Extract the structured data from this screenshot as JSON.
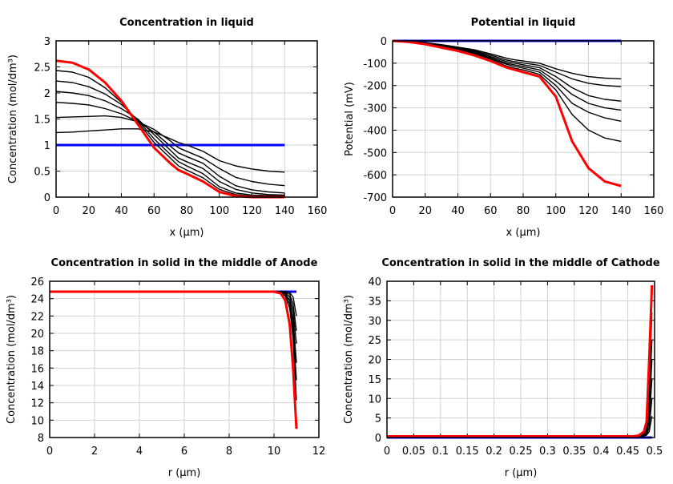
{
  "chart_data": [
    {
      "type": "line",
      "title": "Concentration in liquid",
      "xlabel": "x (µm)",
      "ylabel": "Concentration (mol/dm³)",
      "xlim": [
        0,
        160
      ],
      "ylim": [
        0,
        3
      ],
      "grid": true,
      "xticks": [
        "0",
        "20",
        "40",
        "60",
        "80",
        "100",
        "120",
        "140",
        "160"
      ],
      "yticks": [
        "0",
        "0.5",
        "1",
        "1.5",
        "2",
        "2.5",
        "3"
      ],
      "x": [
        0,
        10,
        20,
        30,
        40,
        50,
        60,
        70,
        75,
        80,
        90,
        100,
        110,
        120,
        130,
        140
      ],
      "series": [
        {
          "color": "#0000ff",
          "values": [
            1,
            1,
            1,
            1,
            1,
            1,
            1,
            1,
            1,
            1,
            1,
            1,
            1,
            1,
            1,
            1
          ]
        },
        {
          "color": "#000000",
          "values": [
            1.24,
            1.25,
            1.27,
            1.29,
            1.31,
            1.31,
            1.25,
            1.12,
            1.05,
            1.0,
            0.88,
            0.7,
            0.6,
            0.54,
            0.5,
            0.48
          ]
        },
        {
          "color": "#000000",
          "values": [
            1.53,
            1.54,
            1.55,
            1.56,
            1.53,
            1.45,
            1.3,
            1.08,
            0.95,
            0.88,
            0.75,
            0.55,
            0.38,
            0.3,
            0.25,
            0.22
          ]
        },
        {
          "color": "#000000",
          "values": [
            1.82,
            1.8,
            1.77,
            1.7,
            1.6,
            1.45,
            1.25,
            0.98,
            0.85,
            0.78,
            0.65,
            0.4,
            0.22,
            0.14,
            0.1,
            0.08
          ]
        },
        {
          "color": "#000000",
          "values": [
            2.03,
            2.0,
            1.95,
            1.85,
            1.7,
            1.5,
            1.2,
            0.9,
            0.75,
            0.68,
            0.55,
            0.3,
            0.15,
            0.08,
            0.05,
            0.04
          ]
        },
        {
          "color": "#000000",
          "values": [
            2.23,
            2.2,
            2.12,
            1.98,
            1.78,
            1.48,
            1.12,
            0.82,
            0.68,
            0.6,
            0.45,
            0.2,
            0.08,
            0.04,
            0.03,
            0.03
          ]
        },
        {
          "color": "#000000",
          "values": [
            2.43,
            2.4,
            2.3,
            2.1,
            1.82,
            1.45,
            1.05,
            0.75,
            0.6,
            0.52,
            0.37,
            0.15,
            0.05,
            0.02,
            0.01,
            0.01
          ]
        },
        {
          "color": "#ff0000",
          "values": [
            2.62,
            2.58,
            2.45,
            2.2,
            1.85,
            1.4,
            0.95,
            0.65,
            0.52,
            0.45,
            0.3,
            0.1,
            0.02,
            0,
            0,
            0
          ]
        }
      ]
    },
    {
      "type": "line",
      "title": "Potential in liquid",
      "xlabel": "x (µm)",
      "ylabel": "Potential (mV)",
      "xlim": [
        0,
        160
      ],
      "ylim": [
        -700,
        0
      ],
      "grid": true,
      "xticks": [
        "0",
        "20",
        "40",
        "60",
        "80",
        "100",
        "120",
        "140",
        "160"
      ],
      "yticks": [
        "-700",
        "-600",
        "-500",
        "-400",
        "-300",
        "-200",
        "-100",
        "0"
      ],
      "x": [
        0,
        10,
        20,
        30,
        40,
        50,
        60,
        70,
        75,
        80,
        90,
        100,
        110,
        120,
        130,
        140
      ],
      "series": [
        {
          "color": "#0000ff",
          "values": [
            0,
            0,
            0,
            0,
            0,
            0,
            0,
            0,
            0,
            0,
            0,
            0,
            0,
            0,
            0,
            0
          ]
        },
        {
          "color": "#000000",
          "values": [
            0,
            -2,
            -8,
            -17,
            -28,
            -40,
            -58,
            -78,
            -85,
            -90,
            -100,
            -125,
            -145,
            -160,
            -167,
            -170
          ]
        },
        {
          "color": "#000000",
          "values": [
            0,
            -3,
            -9,
            -19,
            -31,
            -44,
            -64,
            -86,
            -93,
            -99,
            -110,
            -140,
            -170,
            -190,
            -200,
            -205
          ]
        },
        {
          "color": "#000000",
          "values": [
            0,
            -3,
            -10,
            -21,
            -34,
            -48,
            -70,
            -93,
            -100,
            -107,
            -120,
            -160,
            -210,
            -245,
            -262,
            -270
          ]
        },
        {
          "color": "#000000",
          "values": [
            0,
            -3,
            -11,
            -23,
            -37,
            -52,
            -75,
            -100,
            -108,
            -115,
            -130,
            -180,
            -240,
            -280,
            -300,
            -310
          ]
        },
        {
          "color": "#000000",
          "values": [
            0,
            -4,
            -12,
            -25,
            -40,
            -56,
            -80,
            -105,
            -115,
            -122,
            -140,
            -200,
            -280,
            -320,
            -345,
            -360
          ]
        },
        {
          "color": "#000000",
          "values": [
            0,
            -4,
            -13,
            -27,
            -42,
            -60,
            -85,
            -113,
            -123,
            -130,
            -150,
            -220,
            -330,
            -400,
            -435,
            -450
          ]
        },
        {
          "color": "#ff0000",
          "values": [
            0,
            -5,
            -15,
            -30,
            -45,
            -65,
            -90,
            -120,
            -130,
            -140,
            -160,
            -250,
            -450,
            -570,
            -630,
            -650
          ]
        }
      ]
    },
    {
      "type": "line",
      "title": "Concentration in solid in the middle of Anode",
      "xlabel": "r (µm)",
      "ylabel": "Concentration (mol/dm³)",
      "xlim": [
        0,
        12
      ],
      "ylim": [
        8,
        26
      ],
      "grid": true,
      "xticks": [
        "0",
        "2",
        "4",
        "6",
        "8",
        "10",
        "12"
      ],
      "yticks": [
        "8",
        "10",
        "12",
        "14",
        "16",
        "18",
        "20",
        "22",
        "24",
        "26"
      ],
      "x": [
        0,
        10,
        10.3,
        10.5,
        10.7,
        10.85,
        11
      ],
      "series": [
        {
          "color": "#0000ff",
          "values": [
            24.8,
            24.8,
            24.8,
            24.8,
            24.8,
            24.8,
            24.8
          ]
        },
        {
          "color": "#000000",
          "values": [
            24.8,
            24.8,
            24.8,
            24.8,
            24.7,
            24.2,
            22
          ]
        },
        {
          "color": "#000000",
          "values": [
            24.8,
            24.8,
            24.8,
            24.8,
            24.5,
            23.4,
            20.3
          ]
        },
        {
          "color": "#000000",
          "values": [
            24.8,
            24.8,
            24.8,
            24.7,
            24.2,
            22.6,
            18.8
          ]
        },
        {
          "color": "#000000",
          "values": [
            24.8,
            24.8,
            24.8,
            24.6,
            23.8,
            21.6,
            16.6
          ]
        },
        {
          "color": "#000000",
          "values": [
            24.8,
            24.8,
            24.8,
            24.5,
            23.4,
            20.6,
            14.6
          ]
        },
        {
          "color": "#000000",
          "values": [
            24.8,
            24.8,
            24.7,
            24.3,
            22.9,
            19.5,
            12.3
          ]
        },
        {
          "color": "#ff0000",
          "values": [
            24.8,
            24.8,
            24.6,
            23.8,
            21.0,
            16.0,
            9.0
          ]
        }
      ]
    },
    {
      "type": "line",
      "title": "Concentration in solid in the middle of Cathode",
      "xlabel": "r (µm)",
      "ylabel": "Concentration (mol/dm³)",
      "xlim": [
        0,
        0.5
      ],
      "ylim": [
        0,
        40
      ],
      "grid": true,
      "xticks": [
        "0",
        "0.05",
        "0.1",
        "0.15",
        "0.2",
        "0.25",
        "0.3",
        "0.35",
        "0.4",
        "0.45",
        "0.5"
      ],
      "yticks": [
        "0",
        "5",
        "10",
        "15",
        "20",
        "25",
        "30",
        "35",
        "40"
      ],
      "x": [
        0,
        0.46,
        0.47,
        0.48,
        0.485,
        0.49,
        0.495
      ],
      "series": [
        {
          "color": "#0000ff",
          "values": [
            0,
            0,
            0,
            0,
            0,
            0,
            0
          ]
        },
        {
          "color": "#000000",
          "values": [
            0.3,
            0.3,
            0.3,
            0.4,
            0.6,
            1.5,
            5.5
          ]
        },
        {
          "color": "#000000",
          "values": [
            0.3,
            0.3,
            0.3,
            0.5,
            0.8,
            2.5,
            10
          ]
        },
        {
          "color": "#000000",
          "values": [
            0.3,
            0.3,
            0.35,
            0.6,
            1.0,
            4,
            15
          ]
        },
        {
          "color": "#000000",
          "values": [
            0.3,
            0.3,
            0.4,
            0.8,
            1.5,
            6,
            20
          ]
        },
        {
          "color": "#000000",
          "values": [
            0.3,
            0.3,
            0.4,
            1.0,
            2,
            9,
            25
          ]
        },
        {
          "color": "#000000",
          "values": [
            0.3,
            0.3,
            0.5,
            1.2,
            3,
            14,
            32
          ]
        },
        {
          "color": "#ff0000",
          "values": [
            0.3,
            0.3,
            0.5,
            1.5,
            4,
            20,
            39
          ]
        }
      ]
    }
  ]
}
